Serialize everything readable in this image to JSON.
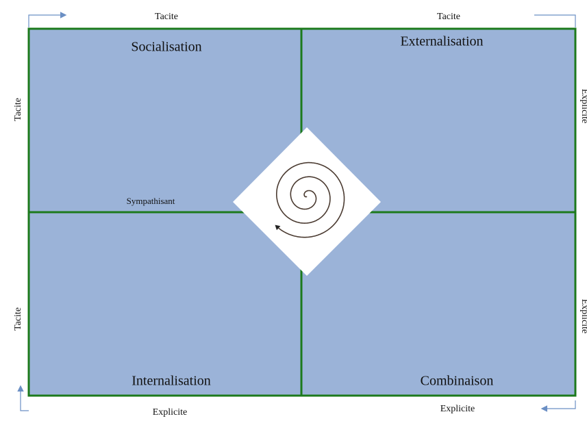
{
  "top_labels": [
    "Tacite",
    "Tacite"
  ],
  "bottom_labels": [
    "Explicite",
    "Explicite"
  ],
  "left_labels": [
    "Tacite",
    "Tacite"
  ],
  "right_labels": [
    "Explicite",
    "Explicite"
  ],
  "quadrants": [
    "Socialisation",
    "Externalisation",
    "Internalisation",
    "Combinaison"
  ],
  "center_label": "Sympathisant"
}
